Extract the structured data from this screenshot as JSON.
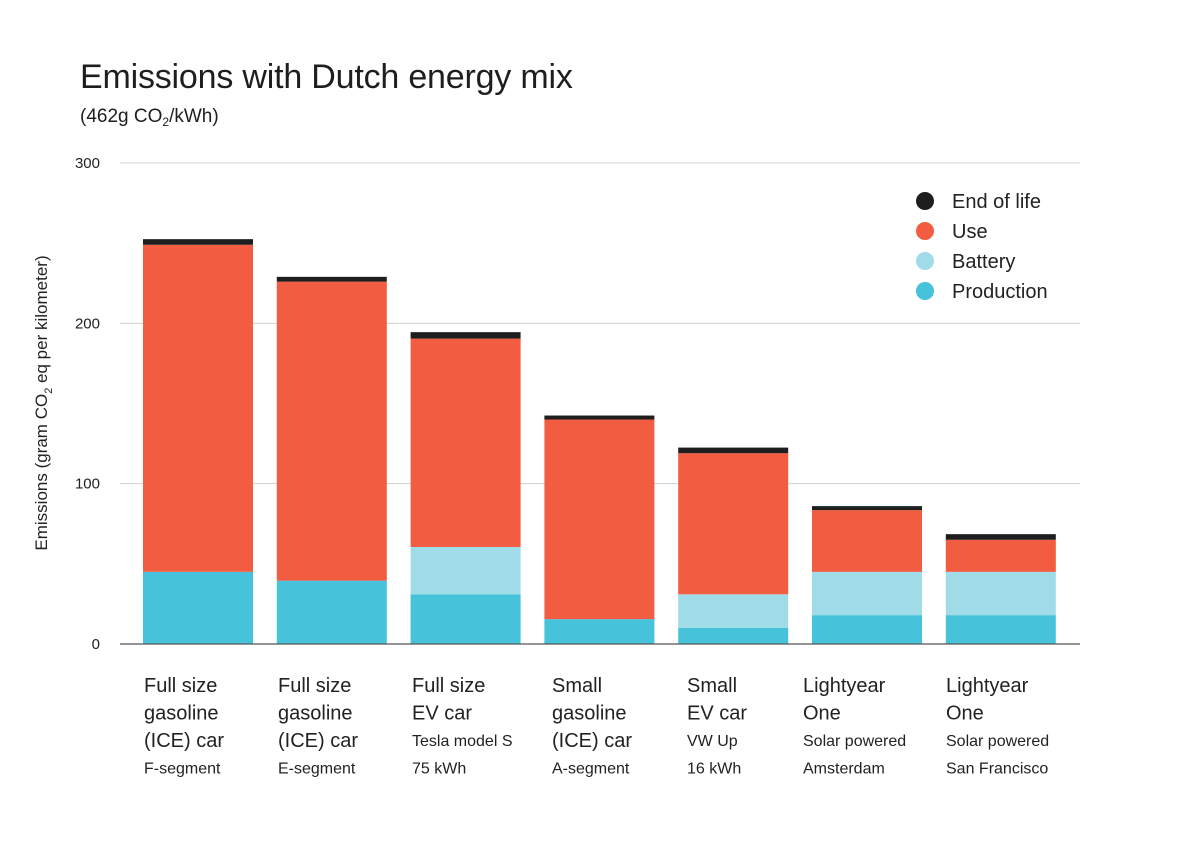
{
  "header": {
    "title": "Emissions with Dutch energy mix",
    "subtitle_prefix": "(462g CO",
    "subtitle_subscript": "2",
    "subtitle_suffix": "/kWh)"
  },
  "colors": {
    "end_of_life": "#1e1e1e",
    "use": "#f25c40",
    "battery": "#a0dce8",
    "production": "#46c3da",
    "grid": "#d0d0d0",
    "axis": "#555555"
  },
  "chart_data": {
    "type": "bar",
    "stacked": true,
    "title": "Emissions with Dutch energy mix",
    "subtitle": "(462g CO2/kWh)",
    "ylabel": "Emissions (gram CO2 eq per kilometer)",
    "ylabel_parts": [
      "Emissions (gram CO",
      "2",
      " eq per kilometer)"
    ],
    "xlabel": "",
    "ylim": [
      0,
      300
    ],
    "yticks": [
      0,
      100,
      200,
      300
    ],
    "grid": true,
    "legend_position": "top-right",
    "categories": [
      {
        "lines": [
          "Full size",
          "gasoline",
          "(ICE) car"
        ],
        "sub": [
          "F-segment"
        ]
      },
      {
        "lines": [
          "Full size",
          "gasoline",
          "(ICE) car"
        ],
        "sub": [
          "E-segment"
        ]
      },
      {
        "lines": [
          "Full size",
          "EV car"
        ],
        "sub": [
          "Tesla model S",
          "75 kWh"
        ]
      },
      {
        "lines": [
          "Small",
          "gasoline",
          "(ICE) car"
        ],
        "sub": [
          "A-segment"
        ]
      },
      {
        "lines": [
          "Small",
          "EV car"
        ],
        "sub": [
          "VW Up",
          "16 kWh"
        ]
      },
      {
        "lines": [
          "Lightyear",
          "One"
        ],
        "sub": [
          "Solar powered",
          "Amsterdam"
        ]
      },
      {
        "lines": [
          "Lightyear",
          "One"
        ],
        "sub": [
          "Solar powered",
          "San Francisco"
        ]
      }
    ],
    "series": [
      {
        "key": "production",
        "name": "Production",
        "values": [
          45,
          39.5,
          31,
          15.5,
          10,
          18,
          18
        ]
      },
      {
        "key": "battery",
        "name": "Battery",
        "values": [
          0,
          0,
          29.5,
          0,
          21,
          27,
          27
        ]
      },
      {
        "key": "use",
        "name": "Use",
        "values": [
          204,
          186.5,
          130,
          124.5,
          88,
          38.5,
          20
        ]
      },
      {
        "key": "end_of_life",
        "name": "End of life",
        "values": [
          3.5,
          3,
          4,
          2.5,
          3.5,
          2.5,
          3.5
        ]
      }
    ],
    "legend": [
      {
        "key": "end_of_life",
        "label": "End of life"
      },
      {
        "key": "use",
        "label": "Use"
      },
      {
        "key": "battery",
        "label": "Battery"
      },
      {
        "key": "production",
        "label": "Production"
      }
    ]
  }
}
